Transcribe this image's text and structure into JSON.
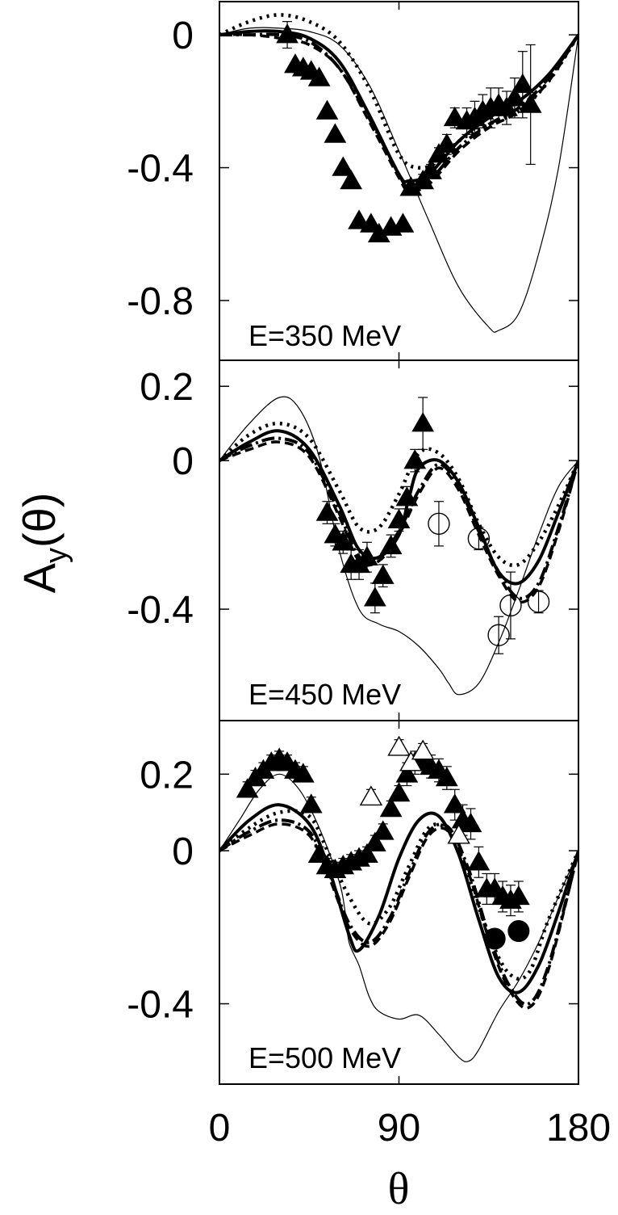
{
  "y_axis_label": {
    "main": "A",
    "sub": "y",
    "arg": "(θ)"
  },
  "x_axis_label": "θ",
  "x_ticks": [
    0,
    90,
    180
  ],
  "x_tick_labels": [
    "0",
    "90",
    "180"
  ],
  "chart_data": [
    {
      "type": "line",
      "label": "E=350 MeV",
      "xlim": [
        0,
        180
      ],
      "ylim": [
        -0.98,
        0.1
      ],
      "y_ticks": [
        0,
        -0.4,
        -0.8
      ],
      "y_tick_labels": [
        "0",
        "-0.4",
        "-0.8"
      ],
      "series": [
        {
          "style": "thick-solid",
          "x": [
            0,
            15,
            30,
            45,
            60,
            75,
            90,
            95,
            105,
            120,
            135,
            150,
            165,
            180
          ],
          "y": [
            0,
            0.01,
            0.01,
            -0.01,
            -0.08,
            -0.24,
            -0.42,
            -0.44,
            -0.42,
            -0.32,
            -0.25,
            -0.2,
            -0.12,
            0
          ]
        },
        {
          "style": "dotted",
          "x": [
            0,
            15,
            30,
            45,
            60,
            75,
            90,
            100,
            110,
            120,
            135,
            150,
            165,
            180
          ],
          "y": [
            0,
            0.04,
            0.06,
            0.04,
            -0.02,
            -0.16,
            -0.36,
            -0.4,
            -0.38,
            -0.32,
            -0.27,
            -0.23,
            -0.14,
            0
          ]
        },
        {
          "style": "dash-dot",
          "x": [
            0,
            15,
            30,
            45,
            60,
            75,
            90,
            95,
            105,
            120,
            135,
            150,
            165,
            180
          ],
          "y": [
            0,
            0,
            0,
            -0.02,
            -0.1,
            -0.25,
            -0.42,
            -0.46,
            -0.44,
            -0.34,
            -0.27,
            -0.22,
            -0.13,
            0
          ]
        },
        {
          "style": "dashed",
          "x": [
            0,
            15,
            30,
            45,
            60,
            75,
            90,
            95,
            105,
            120,
            135,
            150,
            165,
            180
          ],
          "y": [
            0,
            0,
            -0.01,
            -0.03,
            -0.1,
            -0.26,
            -0.43,
            -0.47,
            -0.45,
            -0.35,
            -0.28,
            -0.23,
            -0.14,
            0
          ]
        },
        {
          "style": "thin-solid",
          "x": [
            0,
            15,
            30,
            45,
            60,
            75,
            90,
            105,
            120,
            135,
            140,
            150,
            160,
            170,
            180
          ],
          "y": [
            0,
            0.02,
            0.02,
            0.01,
            -0.03,
            -0.15,
            -0.35,
            -0.56,
            -0.76,
            -0.88,
            -0.89,
            -0.84,
            -0.66,
            -0.4,
            0
          ]
        }
      ],
      "points": [
        {
          "marker": "filled-triangle",
          "x": [
            34,
            38,
            42,
            46,
            50,
            54,
            58,
            62,
            66,
            70,
            76,
            80,
            86,
            92,
            96,
            102,
            106,
            110,
            114,
            118,
            124,
            128,
            132,
            136,
            140,
            144,
            148,
            152,
            156
          ],
          "y": [
            0,
            -0.09,
            -0.1,
            -0.11,
            -0.13,
            -0.23,
            -0.3,
            -0.4,
            -0.44,
            -0.56,
            -0.57,
            -0.6,
            -0.58,
            -0.57,
            -0.46,
            -0.44,
            -0.41,
            -0.36,
            -0.33,
            -0.25,
            -0.26,
            -0.25,
            -0.23,
            -0.22,
            -0.21,
            -0.22,
            -0.19,
            -0.15,
            -0.21
          ],
          "err": [
            0.04,
            0,
            0,
            0,
            0,
            0,
            0,
            0,
            0,
            0,
            0,
            0,
            0,
            0,
            0.02,
            0.02,
            0.02,
            0.02,
            0.03,
            0.03,
            0.04,
            0.05,
            0.05,
            0.06,
            0.05,
            0.05,
            0.06,
            0.1,
            0.18
          ]
        }
      ]
    },
    {
      "type": "line",
      "label": "E=450 MeV",
      "xlim": [
        0,
        180
      ],
      "ylim": [
        -0.7,
        0.27
      ],
      "y_ticks": [
        0.2,
        0,
        -0.4
      ],
      "y_tick_labels": [
        "0.2",
        "0",
        "-0.4"
      ],
      "series": [
        {
          "style": "thick-solid",
          "x": [
            0,
            15,
            30,
            45,
            60,
            70,
            80,
            90,
            95,
            100,
            110,
            120,
            130,
            140,
            150,
            160,
            170,
            180
          ],
          "y": [
            0,
            0.05,
            0.08,
            0.03,
            -0.12,
            -0.24,
            -0.26,
            -0.2,
            -0.1,
            -0.02,
            0,
            -0.06,
            -0.18,
            -0.3,
            -0.33,
            -0.27,
            -0.14,
            0
          ]
        },
        {
          "style": "dotted",
          "x": [
            0,
            15,
            30,
            45,
            60,
            70,
            80,
            90,
            100,
            110,
            120,
            130,
            140,
            150,
            160,
            170,
            180
          ],
          "y": [
            0,
            0.07,
            0.1,
            0.06,
            -0.08,
            -0.18,
            -0.18,
            -0.09,
            0.02,
            0.02,
            -0.05,
            -0.17,
            -0.26,
            -0.28,
            -0.22,
            -0.12,
            0
          ]
        },
        {
          "style": "dash-dot",
          "x": [
            0,
            15,
            30,
            45,
            60,
            70,
            80,
            90,
            100,
            110,
            120,
            130,
            140,
            150,
            160,
            170,
            180
          ],
          "y": [
            0,
            0.04,
            0.06,
            0.02,
            -0.14,
            -0.26,
            -0.26,
            -0.19,
            -0.08,
            -0.01,
            -0.07,
            -0.19,
            -0.3,
            -0.37,
            -0.33,
            -0.18,
            0
          ]
        },
        {
          "style": "dashed",
          "x": [
            0,
            15,
            30,
            45,
            60,
            70,
            80,
            90,
            100,
            110,
            120,
            130,
            140,
            150,
            160,
            170,
            180
          ],
          "y": [
            0,
            0.03,
            0.05,
            0.01,
            -0.15,
            -0.27,
            -0.27,
            -0.2,
            -0.09,
            -0.02,
            -0.08,
            -0.2,
            -0.31,
            -0.38,
            -0.34,
            -0.19,
            0
          ]
        },
        {
          "style": "thin-solid",
          "x": [
            0,
            15,
            30,
            40,
            50,
            60,
            70,
            80,
            90,
            100,
            110,
            115,
            120,
            130,
            140,
            150,
            160,
            170,
            180
          ],
          "y": [
            0,
            0.1,
            0.17,
            0.14,
            0.01,
            -0.24,
            -0.4,
            -0.44,
            -0.46,
            -0.5,
            -0.56,
            -0.6,
            -0.63,
            -0.6,
            -0.49,
            -0.35,
            -0.2,
            -0.07,
            0
          ]
        }
      ],
      "points": [
        {
          "marker": "filled-triangle",
          "x": [
            54,
            58,
            62,
            66,
            70,
            74,
            78,
            82,
            86,
            90,
            94,
            98,
            102
          ],
          "y": [
            -0.14,
            -0.2,
            -0.22,
            -0.28,
            -0.28,
            -0.26,
            -0.37,
            -0.31,
            -0.23,
            -0.16,
            -0.1,
            0,
            0.1
          ],
          "err": [
            0.03,
            0.03,
            0.03,
            0.04,
            0.04,
            0.04,
            0.04,
            0.03,
            0.03,
            0.03,
            0.03,
            0.03,
            0.07
          ]
        },
        {
          "marker": "open-circle",
          "x": [
            110,
            130,
            140,
            146,
            160
          ],
          "y": [
            -0.17,
            -0.21,
            -0.47,
            -0.39,
            -0.38
          ],
          "err": [
            0.06,
            0.03,
            0.05,
            0.09,
            0.03
          ]
        }
      ]
    },
    {
      "type": "line",
      "label": "E=500 MeV",
      "xlim": [
        0,
        180
      ],
      "ylim": [
        -0.61,
        0.34
      ],
      "y_ticks": [
        0.2,
        0,
        -0.4
      ],
      "y_tick_labels": [
        "0.2",
        "0",
        "-0.4"
      ],
      "series": [
        {
          "style": "thick-solid",
          "x": [
            0,
            15,
            30,
            45,
            55,
            65,
            70,
            80,
            90,
            100,
            110,
            120,
            130,
            140,
            150,
            160,
            170,
            180
          ],
          "y": [
            0,
            0.08,
            0.12,
            0.07,
            -0.05,
            -0.22,
            -0.26,
            -0.17,
            -0.02,
            0.08,
            0.09,
            -0.01,
            -0.18,
            -0.33,
            -0.37,
            -0.3,
            -0.16,
            0
          ]
        },
        {
          "style": "dotted",
          "x": [
            0,
            15,
            30,
            45,
            55,
            65,
            75,
            85,
            95,
            105,
            115,
            125,
            135,
            145,
            155,
            165,
            180
          ],
          "y": [
            0,
            0.06,
            0.1,
            0.09,
            -0.01,
            -0.12,
            -0.19,
            -0.15,
            -0.04,
            0.06,
            0.05,
            -0.07,
            -0.22,
            -0.32,
            -0.32,
            -0.18,
            0
          ]
        },
        {
          "style": "dash-dot",
          "x": [
            0,
            15,
            30,
            45,
            55,
            65,
            75,
            85,
            95,
            105,
            115,
            125,
            135,
            145,
            155,
            165,
            180
          ],
          "y": [
            0,
            0.05,
            0.08,
            0.05,
            -0.06,
            -0.19,
            -0.24,
            -0.18,
            -0.06,
            0.05,
            0.06,
            -0.05,
            -0.22,
            -0.35,
            -0.4,
            -0.3,
            0
          ]
        },
        {
          "style": "dashed",
          "x": [
            0,
            15,
            30,
            45,
            55,
            65,
            75,
            85,
            95,
            105,
            115,
            125,
            135,
            145,
            155,
            165,
            180
          ],
          "y": [
            0,
            0.04,
            0.07,
            0.04,
            -0.07,
            -0.2,
            -0.25,
            -0.19,
            -0.07,
            0.04,
            0.05,
            -0.06,
            -0.23,
            -0.36,
            -0.41,
            -0.31,
            0
          ]
        },
        {
          "style": "thin-solid",
          "x": [
            0,
            10,
            20,
            30,
            40,
            50,
            60,
            63,
            65,
            70,
            75,
            80,
            90,
            100,
            110,
            120,
            125,
            130,
            140,
            150,
            160,
            170,
            180
          ],
          "y": [
            0,
            0.08,
            0.16,
            0.2,
            0.16,
            0.06,
            -0.08,
            -0.16,
            -0.24,
            -0.3,
            -0.38,
            -0.42,
            -0.44,
            -0.43,
            -0.48,
            -0.54,
            -0.55,
            -0.52,
            -0.42,
            -0.34,
            -0.24,
            -0.12,
            0
          ]
        }
      ],
      "points": [
        {
          "marker": "filled-triangle",
          "x": [
            14,
            18,
            22,
            26,
            30,
            34,
            38,
            42,
            46,
            50,
            54,
            58,
            62,
            66,
            70,
            74,
            78,
            82,
            86,
            90,
            94,
            98,
            102,
            106,
            110,
            114,
            118,
            122,
            126,
            130,
            134,
            138,
            142,
            146,
            150
          ],
          "y": [
            0.16,
            0.19,
            0.21,
            0.23,
            0.24,
            0.23,
            0.21,
            0.2,
            0.12,
            -0.01,
            -0.04,
            -0.05,
            -0.04,
            -0.03,
            -0.02,
            -0.01,
            0.02,
            0.05,
            0.11,
            0.15,
            0.2,
            0.23,
            0.24,
            0.22,
            0.21,
            0.19,
            0.12,
            0.08,
            0.07,
            -0.03,
            -0.1,
            -0.1,
            -0.12,
            -0.13,
            -0.12
          ],
          "err": [
            0.02,
            0.02,
            0.02,
            0.02,
            0.02,
            0.02,
            0.02,
            0.02,
            0.02,
            0.02,
            0.02,
            0.02,
            0.02,
            0.02,
            0.02,
            0.02,
            0.02,
            0.02,
            0.02,
            0.02,
            0.03,
            0.03,
            0.03,
            0.03,
            0.03,
            0.03,
            0.04,
            0.04,
            0.04,
            0.04,
            0.04,
            0.04,
            0.04,
            0.04,
            0.04
          ]
        },
        {
          "marker": "open-triangle",
          "x": [
            76,
            90,
            96,
            102,
            120
          ],
          "y": [
            0.14,
            0.27,
            0.23,
            0.26,
            0.04
          ],
          "err": [
            0.02,
            0.02,
            0.02,
            0.02,
            0.02
          ]
        },
        {
          "marker": "filled-circle",
          "x": [
            138,
            150
          ],
          "y": [
            -0.23,
            -0.21
          ],
          "err": [
            0,
            0
          ]
        }
      ]
    }
  ]
}
